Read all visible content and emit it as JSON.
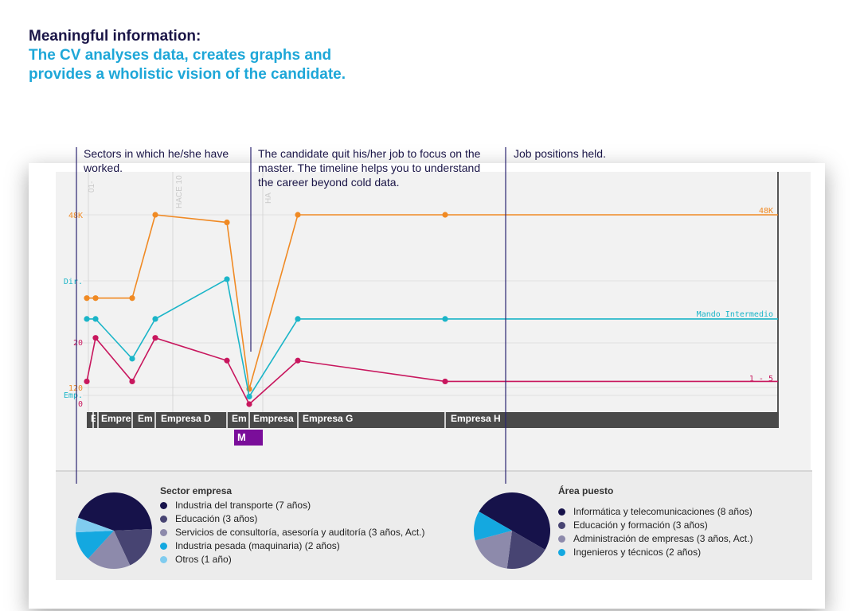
{
  "heading": {
    "line1": "Meaningful information:",
    "line2": "The CV analyses data, creates graphs and provides a wholistic vision of the candidate."
  },
  "annotations": {
    "sectors": "Sectors in which he/she have worked.",
    "quit": "The candidate quit his/her job to focus on the master. The timeline helps you to understand the career beyond cold data.",
    "positions": "Job positions held."
  },
  "axis_labels": {
    "salary_top": "48K",
    "salary_mid": "120",
    "level_top": "Dir.",
    "level_bottom": "Emp.",
    "rating_top": "20",
    "rating_bottom": "0",
    "vert_1": "01-",
    "vert_2": "HACE 10",
    "vert_3": "HA"
  },
  "series_end_labels": {
    "salary": "48K",
    "level": "Mando Intermedio",
    "rating": "1 - 5"
  },
  "timeline": {
    "companies": [
      "E",
      "Empre",
      "Em",
      "Empresa D",
      "Em",
      "Empresa",
      "Empresa G",
      "Empresa H"
    ],
    "master_label": "M"
  },
  "colors": {
    "salary": "#f08a24",
    "level": "#1bb5c8",
    "rating": "#c8175e",
    "timeline_bar": "#4a4a4a",
    "master": "#7a0e9a"
  },
  "chart_data": {
    "type": "line",
    "x": [
      0,
      1,
      2,
      3,
      4,
      5,
      6,
      7,
      8
    ],
    "series": [
      {
        "name": "48K",
        "values": [
          56,
          56,
          56,
          100,
          96,
          8,
          100,
          100,
          100
        ]
      },
      {
        "name": "Mando Intermedio",
        "values": [
          45,
          45,
          24,
          45,
          66,
          4,
          45,
          45,
          45
        ]
      },
      {
        "name": "1 - 5",
        "values": [
          12,
          35,
          12,
          35,
          23,
          0,
          23,
          12,
          12
        ]
      }
    ]
  },
  "legend_sector": {
    "title": "Sector empresa",
    "items": [
      {
        "label": "Industria del transporte (7 años)",
        "value": 7,
        "color": "#16124a"
      },
      {
        "label": "Educación (3 años)",
        "value": 3,
        "color": "#474472"
      },
      {
        "label": "Servicios de consultoría, asesoría y auditoría (3 años, Act.)",
        "value": 3,
        "color": "#8d8aab"
      },
      {
        "label": "Industria pesada (maquinaria) (2 años)",
        "value": 2,
        "color": "#14a8e0"
      },
      {
        "label": "Otros (1 año)",
        "value": 1,
        "color": "#80ccef"
      }
    ]
  },
  "legend_area": {
    "title": "Área puesto",
    "items": [
      {
        "label": "Informática y telecomunicaciones (8 años)",
        "value": 8,
        "color": "#16124a"
      },
      {
        "label": "Educación y formación (3 años)",
        "value": 3,
        "color": "#474472"
      },
      {
        "label": "Administración de empresas (3 años, Act.)",
        "value": 3,
        "color": "#8d8aab"
      },
      {
        "label": "Ingenieros y técnicos (2 años)",
        "value": 2,
        "color": "#14a8e0"
      }
    ]
  }
}
